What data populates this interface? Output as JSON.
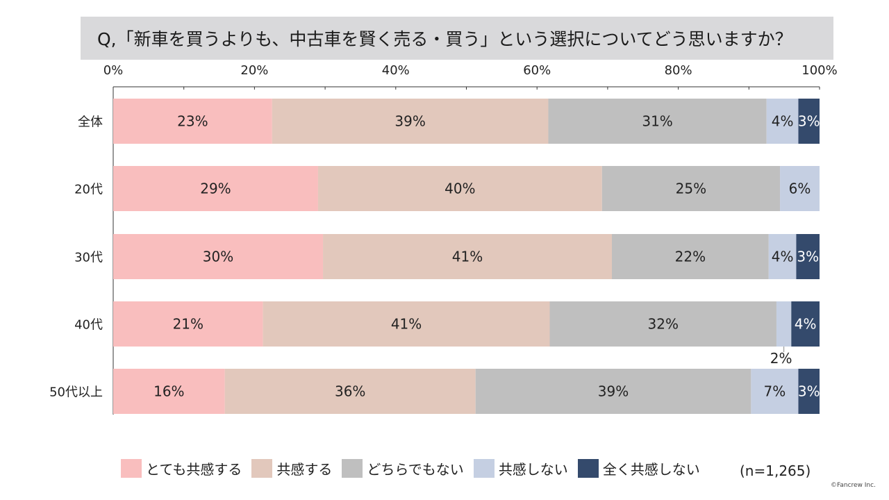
{
  "title": "Q,「新車を買うよりも、中古車を賢く売る・買う」という選択についてどう思いますか？",
  "sample_size": "(n=1,265)",
  "copyright": "©Fancrew Inc.",
  "colors": {
    "very_agree": "#f9bebe",
    "agree": "#e2c8bc",
    "neutral": "#bfbfbf",
    "disagree": "#c5cfe2",
    "strongly_disagree": "#344a6c"
  },
  "chart_data": {
    "type": "bar",
    "orientation": "horizontal",
    "stacked": "percent",
    "categories": [
      "全体",
      "20代",
      "30代",
      "40代",
      "50代以上"
    ],
    "xlim": [
      0,
      100
    ],
    "x_ticks": [
      "0%",
      "20%",
      "40%",
      "60%",
      "80%",
      "100%"
    ],
    "grid": false,
    "legend_position": "bottom",
    "series": [
      {
        "name": "とても共感する",
        "values": [
          22.5,
          29,
          29.7,
          21.2,
          15.8
        ],
        "labels": [
          "23%",
          "29%",
          "30%",
          "21%",
          "16%"
        ]
      },
      {
        "name": "共感する",
        "values": [
          39.1,
          40.2,
          40.9,
          40.6,
          35.5
        ],
        "labels": [
          "39%",
          "40%",
          "41%",
          "41%",
          "36%"
        ]
      },
      {
        "name": "どちらでもない",
        "values": [
          30.9,
          25.2,
          22.2,
          32.1,
          39
        ],
        "labels": [
          "31%",
          "25%",
          "22%",
          "32%",
          "39%"
        ]
      },
      {
        "name": "共感しない",
        "values": [
          4.5,
          5.6,
          3.9,
          2.1,
          6.7
        ],
        "labels": [
          "4%",
          "6%",
          "4%",
          "2%",
          "7%"
        ]
      },
      {
        "name": "全く共感しない",
        "values": [
          3,
          0,
          3.3,
          4,
          3
        ],
        "labels": [
          "3%",
          "",
          "3%",
          "4%",
          "3%"
        ]
      }
    ]
  }
}
